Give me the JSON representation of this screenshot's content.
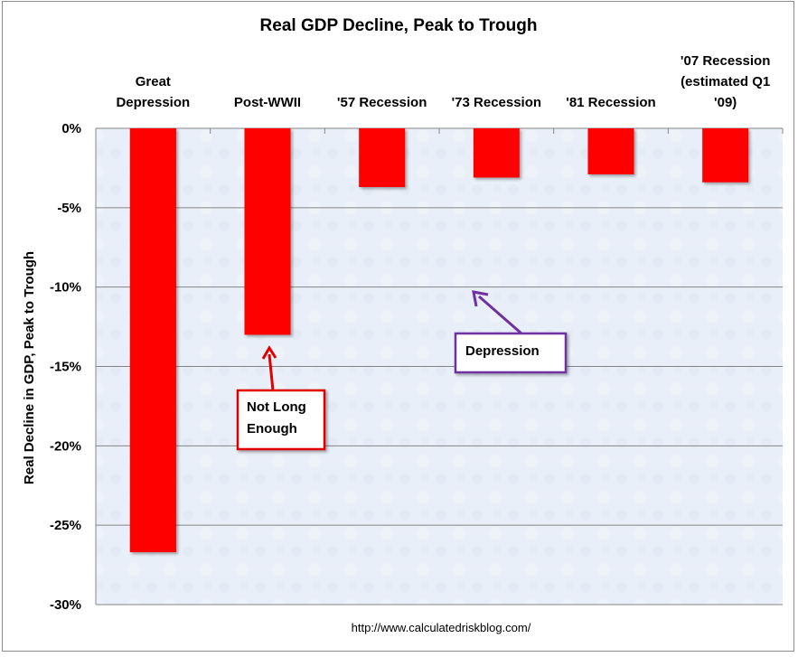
{
  "chart_data": {
    "type": "bar",
    "title": "Real GDP Decline, Peak to Trough",
    "xlabel": "",
    "ylabel": "Real Decline in GDP, Peak to Trough",
    "categories": [
      [
        "Great",
        "Depression"
      ],
      [
        "Post-WWII"
      ],
      [
        "'57 Recession"
      ],
      [
        "'73 Recession"
      ],
      [
        "'81 Recession"
      ],
      [
        "'07 Recession",
        "(estimated Q1",
        "'09)"
      ]
    ],
    "category_names": [
      "Great Depression",
      "Post-WWII",
      "'57 Recession",
      "'73 Recession",
      "'81 Recession",
      "'07 Recession (estimated Q1 '09)"
    ],
    "values": [
      -26.7,
      -13.0,
      -3.7,
      -3.1,
      -2.9,
      -3.4
    ],
    "unit": "%",
    "ylim": [
      -30,
      0
    ],
    "yticks": [
      0,
      -5,
      -10,
      -15,
      -20,
      -25,
      -30
    ],
    "ytick_labels": [
      "0%",
      "-5%",
      "-10%",
      "-15%",
      "-20%",
      "-25%",
      "-30%"
    ],
    "grid": true,
    "category_axis_position": "top",
    "reference_line": {
      "label": "Depression",
      "value": -10,
      "color": "#7030A0"
    },
    "annotations": [
      {
        "text": [
          "Not Long",
          "Enough"
        ],
        "points_to": "Post-WWII",
        "color": "#E00000"
      },
      {
        "text": [
          "Depression"
        ],
        "points_to": "reference_line",
        "color": "#7030A0"
      }
    ],
    "source": "http://www.calculatedriskblog.com/",
    "colors": {
      "bar": "#FF0000",
      "plot_background": "#E9EFF8",
      "gridline": "#868686"
    }
  }
}
